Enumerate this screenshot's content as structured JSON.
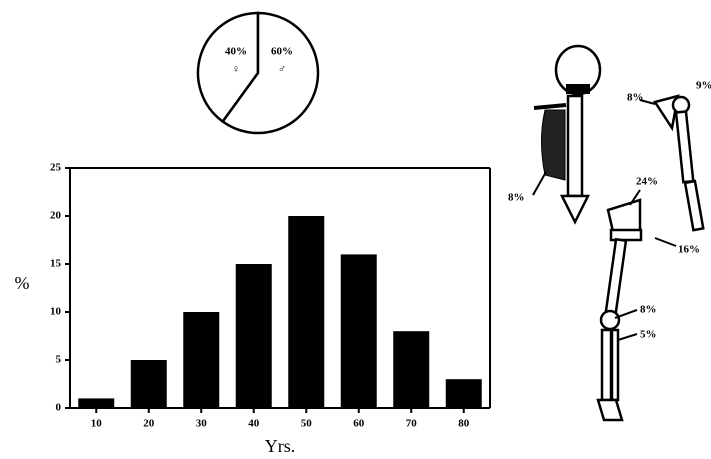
{
  "chart_data": [
    {
      "type": "pie",
      "categories": [
        "♀",
        "♂"
      ],
      "values": [
        40,
        60
      ],
      "value_labels": [
        "40%",
        "60%"
      ],
      "color": "#ffffff"
    },
    {
      "type": "bar",
      "categories": [
        "10",
        "20",
        "30",
        "40",
        "50",
        "60",
        "70",
        "80"
      ],
      "values": [
        1,
        5,
        10,
        15,
        20,
        16,
        8,
        3
      ],
      "color": "#000000",
      "ylim": [
        0,
        25
      ],
      "yticks": [
        0,
        5,
        10,
        15,
        20,
        25
      ],
      "ylabel": "%",
      "xlabel": "Yrs."
    }
  ],
  "diagram": {
    "labels": [
      "8%",
      "9%",
      "8%",
      "24%",
      "16%",
      "8%",
      "5%"
    ]
  }
}
